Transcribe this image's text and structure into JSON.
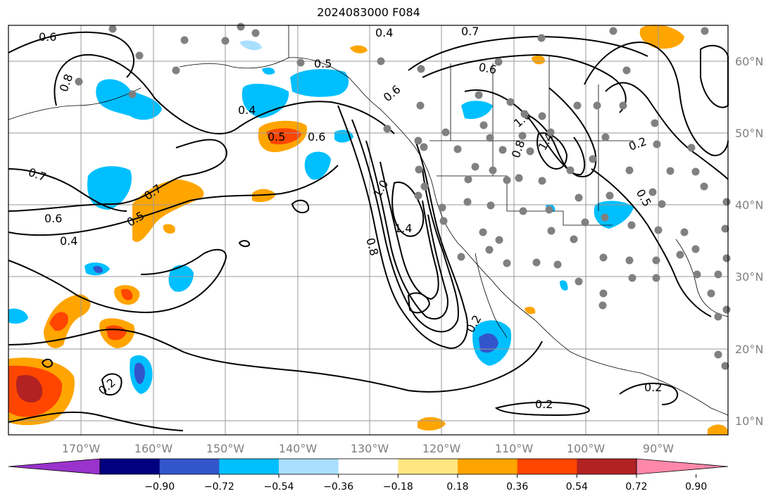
{
  "title": "2024083000 F084",
  "lon_labels": [
    "170°W",
    "160°W",
    "150°W",
    "140°W",
    "130°W",
    "120°W",
    "110°W",
    "100°W",
    "90°W"
  ],
  "lat_labels": [
    "60°N",
    "50°N",
    "40°N",
    "30°N",
    "20°N",
    "10°N"
  ],
  "colorbar": {
    "ticks": [
      "−0.90",
      "−0.72",
      "−0.54",
      "−0.36",
      "−0.18",
      "0.18",
      "0.36",
      "0.54",
      "0.72",
      "0.90"
    ],
    "colors": [
      "#9933cc",
      "#000080",
      "#3355cc",
      "#00bfff",
      "#aadfff",
      "#ffffff",
      "#ffe680",
      "#ffa500",
      "#ff4500",
      "#b22222",
      "#ff88aa"
    ]
  },
  "contour_labels": [
    "0.6",
    "0.8",
    "0.4",
    "0.7",
    "0.5",
    "0.4",
    "0.5",
    "0.6",
    "0.7",
    "0.6",
    "0.4",
    "0.5",
    "0.6",
    "1.0",
    "1.4",
    "0.8",
    "0.2",
    "0.2",
    "0.2",
    "1.0",
    "0.8",
    "1.4",
    "0.2",
    "0.5",
    "0.2",
    "0.6",
    "0.7"
  ],
  "colors": {
    "grid": "#999999",
    "contour": "#000000",
    "station": "#808080",
    "blue_fill": "#00bfff",
    "deep_blue_fill": "#3355cc",
    "orange_fill": "#ffa500",
    "red_fill": "#ff4500",
    "darkred_fill": "#b22222"
  }
}
